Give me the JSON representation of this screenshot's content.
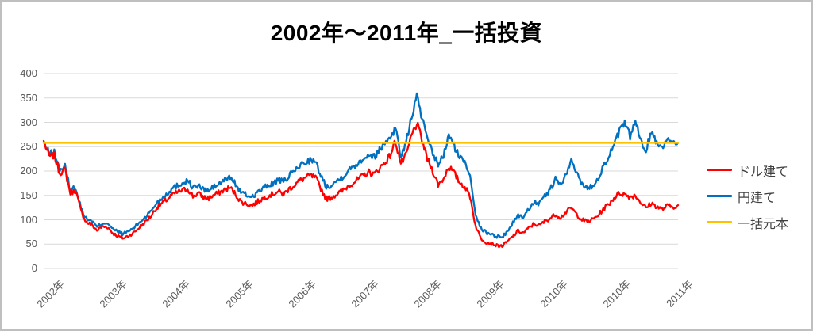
{
  "chart_data": {
    "type": "line",
    "title": "2002年～2011年_一括投資",
    "xlabel": "",
    "ylabel": "",
    "ylim": [
      0,
      400
    ],
    "y_ticks": [
      0,
      50,
      100,
      150,
      200,
      250,
      300,
      350,
      400
    ],
    "x_tick_labels": [
      "2002年",
      "2003年",
      "2004年",
      "2005年",
      "2006年",
      "2007年",
      "2008年",
      "2009年",
      "2010年",
      "2010年",
      "2011年"
    ],
    "grid": "horizontal",
    "legend_position": "right",
    "series": [
      {
        "key": "dollar",
        "name": "ドル建て",
        "color": "#FF0000",
        "values": [
          262,
          230,
          232,
          196,
          203,
          155,
          160,
          118,
          95,
          90,
          78,
          86,
          85,
          72,
          66,
          62,
          68,
          74,
          85,
          95,
          106,
          122,
          132,
          140,
          150,
          156,
          160,
          164,
          148,
          154,
          146,
          144,
          151,
          156,
          162,
          166,
          152,
          137,
          133,
          129,
          136,
          143,
          149,
          153,
          158,
          152,
          163,
          171,
          180,
          186,
          191,
          186,
          164,
          143,
          146,
          153,
          159,
          168,
          176,
          183,
          191,
          198,
          193,
          206,
          217,
          232,
          262,
          215,
          232,
          272,
          298,
          262,
          224,
          200,
          172,
          184,
          210,
          196,
          177,
          168,
          148,
          88,
          62,
          54,
          51,
          47,
          46,
          55,
          66,
          77,
          73,
          83,
          92,
          88,
          97,
          103,
          111,
          105,
          116,
          124,
          111,
          100,
          96,
          101,
          109,
          122,
          132,
          145,
          155,
          152,
          147,
          150,
          136,
          124,
          134,
          127,
          121,
          129,
          126,
          130
        ]
      },
      {
        "key": "yen",
        "name": "円建て",
        "color": "#0070C0",
        "values": [
          258,
          236,
          238,
          203,
          209,
          161,
          167,
          124,
          102,
          98,
          85,
          93,
          94,
          80,
          75,
          71,
          77,
          84,
          95,
          105,
          116,
          132,
          143,
          152,
          163,
          170,
          175,
          181,
          166,
          170,
          162,
          160,
          168,
          174,
          182,
          188,
          173,
          156,
          151,
          147,
          155,
          163,
          170,
          175,
          182,
          177,
          190,
          200,
          211,
          218,
          223,
          217,
          191,
          168,
          172,
          180,
          188,
          199,
          209,
          217,
          227,
          235,
          229,
          244,
          257,
          271,
          289,
          231,
          258,
          312,
          354,
          308,
          262,
          235,
          214,
          231,
          273,
          252,
          228,
          219,
          192,
          114,
          82,
          74,
          70,
          66,
          64,
          77,
          93,
          110,
          105,
          122,
          138,
          132,
          148,
          162,
          183,
          172,
          192,
          220,
          196,
          174,
          164,
          170,
          186,
          210,
          230,
          252,
          282,
          296,
          272,
          301,
          262,
          243,
          282,
          258,
          250,
          268,
          255,
          258
        ]
      },
      {
        "key": "principal",
        "name": "一括元本",
        "color": "#FFC000",
        "constant_value": 258
      }
    ],
    "colors": {
      "grid": "#D9D9D9",
      "axis_text": "#595959",
      "legend_text": "#404040",
      "title_text": "#000000",
      "frame_border": "#BFBFBF"
    }
  }
}
